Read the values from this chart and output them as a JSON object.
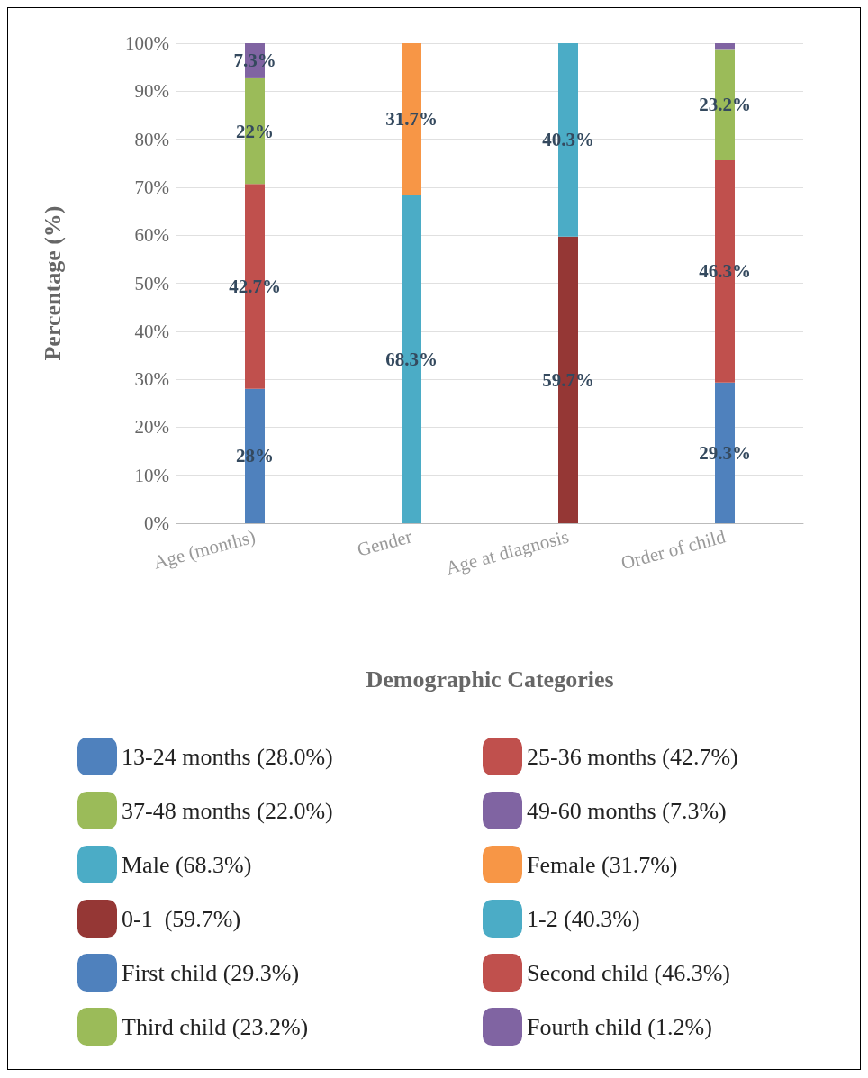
{
  "chart_data": {
    "type": "bar",
    "stacked": true,
    "xlabel": "Demographic Categories",
    "ylabel": "Percentage (%)",
    "categories": [
      "Age (months)",
      "Gender",
      "Age at diagnosis",
      "Order of child"
    ],
    "ylim": [
      0,
      100
    ],
    "yticks": [
      {
        "value": 0,
        "label": "0%"
      },
      {
        "value": 10,
        "label": "10%"
      },
      {
        "value": 20,
        "label": "20%"
      },
      {
        "value": 30,
        "label": "30%"
      },
      {
        "value": 40,
        "label": "40%"
      },
      {
        "value": 50,
        "label": "50%"
      },
      {
        "value": 60,
        "label": "60%"
      },
      {
        "value": 70,
        "label": "70%"
      },
      {
        "value": 80,
        "label": "80%"
      },
      {
        "value": 90,
        "label": "90%"
      },
      {
        "value": 100,
        "label": "100%"
      }
    ],
    "grid": "y",
    "legend": "bottom",
    "series": [
      {
        "name": "13-24 months (28.0%)",
        "color": "#4f81bd",
        "values": [
          28,
          null,
          null,
          null
        ],
        "value_labels": [
          "28%",
          null,
          null,
          null
        ]
      },
      {
        "name": "25-36 months (42.7%)",
        "color": "#c0504d",
        "values": [
          42.7,
          null,
          null,
          null
        ],
        "value_labels": [
          "42.7%",
          null,
          null,
          null
        ]
      },
      {
        "name": "37-48 months (22.0%)",
        "color": "#9bbb59",
        "values": [
          22,
          null,
          null,
          null
        ],
        "value_labels": [
          "22%",
          null,
          null,
          null
        ]
      },
      {
        "name": "49-60 months (7.3%)",
        "color": "#8064a2",
        "values": [
          7.3,
          null,
          null,
          null
        ],
        "value_labels": [
          "7.3%",
          null,
          null,
          null
        ]
      },
      {
        "name": "Male (68.3%)",
        "color": "#4bacc6",
        "values": [
          null,
          68.3,
          null,
          null
        ],
        "value_labels": [
          null,
          "68.3%",
          null,
          null
        ]
      },
      {
        "name": "Female (31.7%)",
        "color": "#f79646",
        "values": [
          null,
          31.7,
          null,
          null
        ],
        "value_labels": [
          null,
          "31.7%",
          null,
          null
        ]
      },
      {
        "name": "0-1  (59.7%)",
        "color": "#953735",
        "values": [
          null,
          null,
          59.7,
          null
        ],
        "value_labels": [
          null,
          null,
          "59.7%",
          null
        ]
      },
      {
        "name": "1-2 (40.3%)",
        "color": "#4bacc6",
        "values": [
          null,
          null,
          40.3,
          null
        ],
        "value_labels": [
          null,
          null,
          "40.3%",
          null
        ]
      },
      {
        "name": "First child (29.3%)",
        "color": "#4f81bd",
        "values": [
          null,
          null,
          null,
          29.3
        ],
        "value_labels": [
          null,
          null,
          null,
          "29.3%"
        ]
      },
      {
        "name": "Second child (46.3%)",
        "color": "#c0504d",
        "values": [
          null,
          null,
          null,
          46.3
        ],
        "value_labels": [
          null,
          null,
          null,
          "46.3%"
        ]
      },
      {
        "name": "Third child (23.2%)",
        "color": "#9bbb59",
        "values": [
          null,
          null,
          null,
          23.2
        ],
        "value_labels": [
          null,
          null,
          null,
          "23.2%"
        ]
      },
      {
        "name": "Fourth child (1.2%)",
        "color": "#8064a2",
        "values": [
          null,
          null,
          null,
          1.2
        ]
      }
    ]
  }
}
